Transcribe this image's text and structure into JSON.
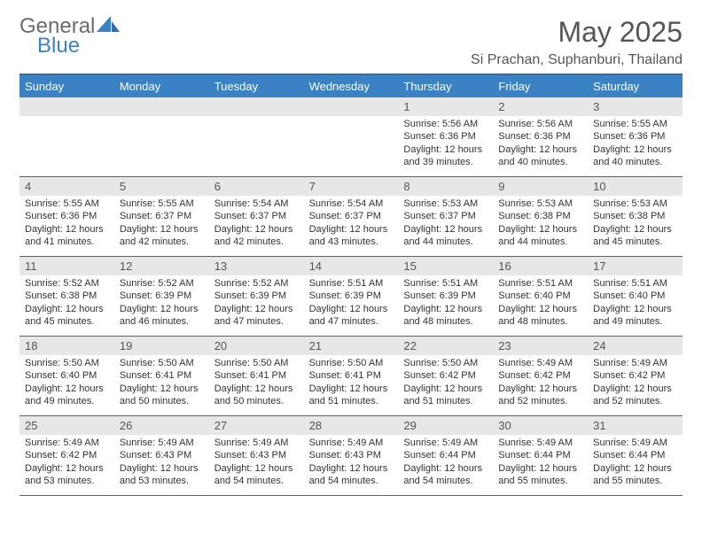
{
  "logo": {
    "word1": "General",
    "word2": "Blue"
  },
  "title": "May 2025",
  "location": "Si Prachan, Suphanburi, Thailand",
  "colors": {
    "header_bg": "#3b82c4",
    "rule": "#2f6ea8",
    "num_bg": "#e7e7e7",
    "text": "#333333"
  },
  "font": {
    "title_size": 32,
    "location_size": 16,
    "header_size": 13,
    "body_size": 11
  },
  "day_headers": [
    "Sunday",
    "Monday",
    "Tuesday",
    "Wednesday",
    "Thursday",
    "Friday",
    "Saturday"
  ],
  "weeks": [
    {
      "nums": [
        "",
        "",
        "",
        "",
        "1",
        "2",
        "3"
      ],
      "info": [
        "",
        "",
        "",
        "",
        "Sunrise: 5:56 AM\nSunset: 6:36 PM\nDaylight: 12 hours and 39 minutes.",
        "Sunrise: 5:56 AM\nSunset: 6:36 PM\nDaylight: 12 hours and 40 minutes.",
        "Sunrise: 5:55 AM\nSunset: 6:36 PM\nDaylight: 12 hours and 40 minutes."
      ]
    },
    {
      "nums": [
        "4",
        "5",
        "6",
        "7",
        "8",
        "9",
        "10"
      ],
      "info": [
        "Sunrise: 5:55 AM\nSunset: 6:36 PM\nDaylight: 12 hours and 41 minutes.",
        "Sunrise: 5:55 AM\nSunset: 6:37 PM\nDaylight: 12 hours and 42 minutes.",
        "Sunrise: 5:54 AM\nSunset: 6:37 PM\nDaylight: 12 hours and 42 minutes.",
        "Sunrise: 5:54 AM\nSunset: 6:37 PM\nDaylight: 12 hours and 43 minutes.",
        "Sunrise: 5:53 AM\nSunset: 6:37 PM\nDaylight: 12 hours and 44 minutes.",
        "Sunrise: 5:53 AM\nSunset: 6:38 PM\nDaylight: 12 hours and 44 minutes.",
        "Sunrise: 5:53 AM\nSunset: 6:38 PM\nDaylight: 12 hours and 45 minutes."
      ]
    },
    {
      "nums": [
        "11",
        "12",
        "13",
        "14",
        "15",
        "16",
        "17"
      ],
      "info": [
        "Sunrise: 5:52 AM\nSunset: 6:38 PM\nDaylight: 12 hours and 45 minutes.",
        "Sunrise: 5:52 AM\nSunset: 6:39 PM\nDaylight: 12 hours and 46 minutes.",
        "Sunrise: 5:52 AM\nSunset: 6:39 PM\nDaylight: 12 hours and 47 minutes.",
        "Sunrise: 5:51 AM\nSunset: 6:39 PM\nDaylight: 12 hours and 47 minutes.",
        "Sunrise: 5:51 AM\nSunset: 6:39 PM\nDaylight: 12 hours and 48 minutes.",
        "Sunrise: 5:51 AM\nSunset: 6:40 PM\nDaylight: 12 hours and 48 minutes.",
        "Sunrise: 5:51 AM\nSunset: 6:40 PM\nDaylight: 12 hours and 49 minutes."
      ]
    },
    {
      "nums": [
        "18",
        "19",
        "20",
        "21",
        "22",
        "23",
        "24"
      ],
      "info": [
        "Sunrise: 5:50 AM\nSunset: 6:40 PM\nDaylight: 12 hours and 49 minutes.",
        "Sunrise: 5:50 AM\nSunset: 6:41 PM\nDaylight: 12 hours and 50 minutes.",
        "Sunrise: 5:50 AM\nSunset: 6:41 PM\nDaylight: 12 hours and 50 minutes.",
        "Sunrise: 5:50 AM\nSunset: 6:41 PM\nDaylight: 12 hours and 51 minutes.",
        "Sunrise: 5:50 AM\nSunset: 6:42 PM\nDaylight: 12 hours and 51 minutes.",
        "Sunrise: 5:49 AM\nSunset: 6:42 PM\nDaylight: 12 hours and 52 minutes.",
        "Sunrise: 5:49 AM\nSunset: 6:42 PM\nDaylight: 12 hours and 52 minutes."
      ]
    },
    {
      "nums": [
        "25",
        "26",
        "27",
        "28",
        "29",
        "30",
        "31"
      ],
      "info": [
        "Sunrise: 5:49 AM\nSunset: 6:42 PM\nDaylight: 12 hours and 53 minutes.",
        "Sunrise: 5:49 AM\nSunset: 6:43 PM\nDaylight: 12 hours and 53 minutes.",
        "Sunrise: 5:49 AM\nSunset: 6:43 PM\nDaylight: 12 hours and 54 minutes.",
        "Sunrise: 5:49 AM\nSunset: 6:43 PM\nDaylight: 12 hours and 54 minutes.",
        "Sunrise: 5:49 AM\nSunset: 6:44 PM\nDaylight: 12 hours and 54 minutes.",
        "Sunrise: 5:49 AM\nSunset: 6:44 PM\nDaylight: 12 hours and 55 minutes.",
        "Sunrise: 5:49 AM\nSunset: 6:44 PM\nDaylight: 12 hours and 55 minutes."
      ]
    }
  ]
}
